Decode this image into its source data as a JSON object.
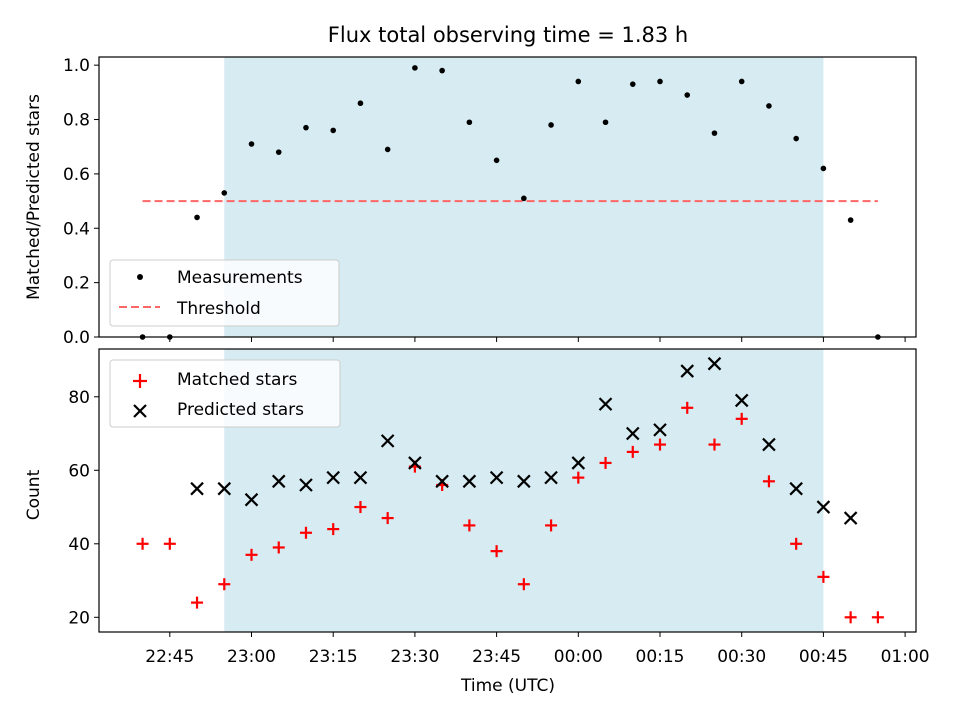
{
  "title": "Flux total observing time = 1.83 h",
  "colors": {
    "shade": "#add8e6",
    "threshold": "#ff6666",
    "matched": "#ff0000",
    "predicted": "#000000",
    "measurement": "#000000"
  },
  "chart_data": [
    {
      "type": "scatter",
      "ylabel": "Matched/Predicted stars",
      "ylim": [
        0,
        1.03
      ],
      "yticks": [
        0,
        0.2,
        0.4,
        0.6,
        0.8,
        1.0
      ],
      "ytick_labels": [
        "0.0",
        "0.2",
        "0.4",
        "0.6",
        "0.8",
        "1.0"
      ],
      "shaded_span": [
        "22:55",
        "00:45"
      ],
      "legend": {
        "position": "lower-left",
        "entries": [
          "Measurements",
          "Threshold"
        ]
      },
      "threshold": {
        "name": "Threshold",
        "y": 0.5,
        "x_from": "22:40",
        "x_to": "00:55"
      },
      "series": [
        {
          "name": "Measurements",
          "marker": "dot",
          "x": [
            "22:40",
            "22:45",
            "22:50",
            "22:55",
            "23:00",
            "23:05",
            "23:10",
            "23:15",
            "23:20",
            "23:25",
            "23:30",
            "23:35",
            "23:40",
            "23:45",
            "23:50",
            "23:55",
            "00:00",
            "00:05",
            "00:10",
            "00:15",
            "00:20",
            "00:25",
            "00:30",
            "00:35",
            "00:40",
            "00:45",
            "00:50",
            "00:55"
          ],
          "y": [
            0.0,
            0.0,
            0.44,
            0.53,
            0.71,
            0.68,
            0.77,
            0.76,
            0.86,
            0.69,
            0.99,
            0.98,
            0.79,
            0.65,
            0.51,
            0.78,
            0.94,
            0.79,
            0.93,
            0.94,
            0.89,
            0.75,
            0.94,
            0.85,
            0.73,
            0.62,
            0.43,
            0.0
          ]
        }
      ]
    },
    {
      "type": "scatter",
      "xlabel": "Time (UTC)",
      "ylabel": "Count",
      "ylim": [
        16,
        93
      ],
      "yticks": [
        20,
        40,
        60,
        80
      ],
      "ytick_labels": [
        "20",
        "40",
        "60",
        "80"
      ],
      "xlim": [
        "22:32",
        "01:02"
      ],
      "xticks": [
        "22:45",
        "23:00",
        "23:15",
        "23:30",
        "23:45",
        "00:00",
        "00:15",
        "00:30",
        "00:45",
        "01:00"
      ],
      "shaded_span": [
        "22:55",
        "00:45"
      ],
      "legend": {
        "position": "upper-left",
        "entries": [
          "Matched stars",
          "Predicted stars"
        ]
      },
      "series": [
        {
          "name": "Matched stars",
          "marker": "plus",
          "x": [
            "22:40",
            "22:45",
            "22:50",
            "22:55",
            "23:00",
            "23:05",
            "23:10",
            "23:15",
            "23:20",
            "23:25",
            "23:30",
            "23:35",
            "23:40",
            "23:45",
            "23:50",
            "23:55",
            "00:00",
            "00:05",
            "00:10",
            "00:15",
            "00:20",
            "00:25",
            "00:30",
            "00:35",
            "00:40",
            "00:45",
            "00:50",
            "00:55"
          ],
          "y": [
            40,
            40,
            24,
            29,
            37,
            39,
            43,
            44,
            50,
            47,
            61,
            56,
            45,
            38,
            29,
            45,
            58,
            62,
            65,
            67,
            77,
            67,
            74,
            57,
            40,
            31,
            20,
            20
          ]
        },
        {
          "name": "Predicted stars",
          "marker": "x",
          "x": [
            "22:50",
            "22:55",
            "23:00",
            "23:05",
            "23:10",
            "23:15",
            "23:20",
            "23:25",
            "23:30",
            "23:35",
            "23:40",
            "23:45",
            "23:50",
            "23:55",
            "00:00",
            "00:05",
            "00:10",
            "00:15",
            "00:20",
            "00:25",
            "00:30",
            "00:35",
            "00:40",
            "00:45",
            "00:50"
          ],
          "y": [
            55,
            55,
            52,
            57,
            56,
            58,
            58,
            68,
            62,
            57,
            57,
            58,
            57,
            58,
            62,
            78,
            70,
            71,
            87,
            89,
            79,
            67,
            55,
            50,
            47
          ]
        }
      ]
    }
  ]
}
